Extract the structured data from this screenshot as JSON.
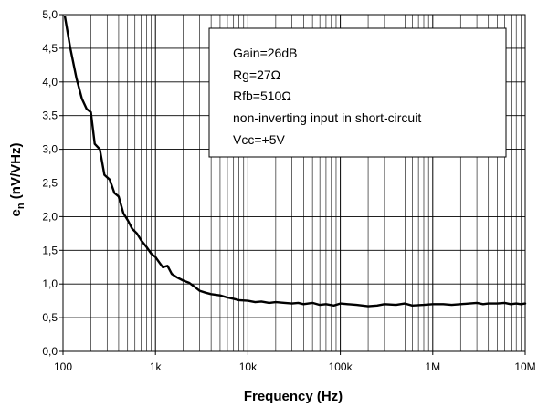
{
  "chart_data": {
    "type": "line",
    "title": "",
    "xlabel": "Frequency  (Hz)",
    "ylabel_main": "e",
    "ylabel_sub": "n",
    "ylabel_rest": "  (nV/VHz)",
    "x_scale": "log",
    "xlim": [
      100,
      10000000
    ],
    "ylim": [
      0,
      5
    ],
    "grid": true,
    "x_ticks": [
      {
        "value": 100,
        "label": "100"
      },
      {
        "value": 1000,
        "label": "1k"
      },
      {
        "value": 10000,
        "label": "10k"
      },
      {
        "value": 100000,
        "label": "100k"
      },
      {
        "value": 1000000,
        "label": "1M"
      },
      {
        "value": 10000000,
        "label": "10M"
      }
    ],
    "y_ticks": [
      {
        "value": 0,
        "label": "0,0"
      },
      {
        "value": 0.5,
        "label": "0,5"
      },
      {
        "value": 1,
        "label": "1,0"
      },
      {
        "value": 1.5,
        "label": "1,5"
      },
      {
        "value": 2,
        "label": "2,0"
      },
      {
        "value": 2.5,
        "label": "2,5"
      },
      {
        "value": 3,
        "label": "3,0"
      },
      {
        "value": 3.5,
        "label": "3,5"
      },
      {
        "value": 4,
        "label": "4,0"
      },
      {
        "value": 4.5,
        "label": "4,5"
      },
      {
        "value": 5,
        "label": "5,0"
      }
    ],
    "annotation": [
      "Gain=26dB",
      "Rg=27Ω",
      "Rfb=510Ω",
      "non-inverting input in short-circuit",
      "Vcc=+5V"
    ],
    "series": [
      {
        "color": "#000000",
        "x": [
          105,
          120,
          140,
          160,
          180,
          200,
          220,
          250,
          280,
          320,
          360,
          400,
          450,
          500,
          560,
          630,
          700,
          800,
          900,
          1000,
          1100,
          1200,
          1350,
          1500,
          1700,
          2000,
          2300,
          2700,
          3000,
          3500,
          4000,
          5000,
          6000,
          7000,
          8000,
          10000,
          12000,
          14000,
          17000,
          20000,
          25000,
          30000,
          35000,
          40000,
          50000,
          60000,
          70000,
          85000,
          100000,
          120000,
          150000,
          200000,
          250000,
          300000,
          400000,
          500000,
          600000,
          800000,
          1000000,
          1300000,
          1600000,
          2000000,
          2500000,
          3000000,
          3500000,
          4000000,
          5000000,
          6000000,
          7000000,
          8000000,
          9000000,
          10000000
        ],
        "y": [
          4.97,
          4.5,
          4.05,
          3.75,
          3.6,
          3.55,
          3.08,
          3.0,
          2.62,
          2.55,
          2.35,
          2.3,
          2.05,
          1.95,
          1.82,
          1.75,
          1.65,
          1.55,
          1.45,
          1.4,
          1.32,
          1.25,
          1.27,
          1.15,
          1.1,
          1.05,
          1.02,
          0.95,
          0.9,
          0.87,
          0.85,
          0.83,
          0.8,
          0.78,
          0.76,
          0.75,
          0.73,
          0.74,
          0.72,
          0.73,
          0.72,
          0.71,
          0.72,
          0.7,
          0.72,
          0.69,
          0.7,
          0.68,
          0.71,
          0.7,
          0.69,
          0.67,
          0.68,
          0.7,
          0.69,
          0.71,
          0.68,
          0.69,
          0.7,
          0.7,
          0.69,
          0.7,
          0.71,
          0.72,
          0.7,
          0.71,
          0.71,
          0.72,
          0.7,
          0.71,
          0.7,
          0.71
        ]
      }
    ]
  }
}
